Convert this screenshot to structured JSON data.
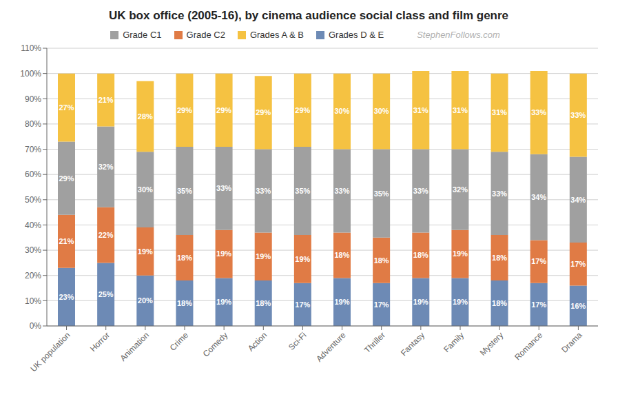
{
  "chart_data": {
    "type": "bar",
    "title": "UK box office (2005-16), by cinema audience social class and film genre",
    "annotations": [
      "StephenFollows.com"
    ],
    "categories": [
      "UK population",
      "Horror",
      "Animation",
      "Crime",
      "Comedy",
      "Action",
      "Sci-Fi",
      "Adventure",
      "Thriller",
      "Fantasy",
      "Family",
      "Mystery",
      "Romance",
      "Drama"
    ],
    "series": [
      {
        "name": "Grades D & E",
        "color": "#6d8ab5",
        "values": [
          23,
          25,
          20,
          18,
          19,
          18,
          17,
          19,
          17,
          19,
          19,
          18,
          17,
          16
        ],
        "value_labels": [
          "23%",
          "25%",
          "20%",
          "18%",
          "19%",
          "18%",
          "17%",
          "19%",
          "17%",
          "19%",
          "19%",
          "18%",
          "17%",
          "16%"
        ]
      },
      {
        "name": "Grade C2",
        "color": "#e07b45",
        "values": [
          21,
          22,
          19,
          18,
          19,
          19,
          19,
          18,
          18,
          18,
          19,
          18,
          17,
          17
        ],
        "value_labels": [
          "21%",
          "22%",
          "19%",
          "18%",
          "19%",
          "19%",
          "19%",
          "18%",
          "18%",
          "18%",
          "19%",
          "18%",
          "17%",
          "17%"
        ]
      },
      {
        "name": "Grade C1",
        "color": "#a0a0a0",
        "values": [
          29,
          32,
          30,
          35,
          33,
          33,
          35,
          33,
          35,
          33,
          32,
          33,
          34,
          34
        ],
        "value_labels": [
          "29%",
          "32%",
          "30%",
          "35%",
          "33%",
          "33%",
          "35%",
          "33%",
          "35%",
          "33%",
          "32%",
          "33%",
          "34%",
          "34%"
        ]
      },
      {
        "name": "Grades A & B",
        "color": "#f5c242",
        "values": [
          27,
          21,
          28,
          29,
          29,
          29,
          29,
          30,
          30,
          31,
          31,
          31,
          33,
          33
        ],
        "value_labels": [
          "27%",
          "21%",
          "28%",
          "29%",
          "29%",
          "29%",
          "29%",
          "30%",
          "30%",
          "31%",
          "31%",
          "31%",
          "33%",
          "33%"
        ]
      }
    ],
    "ylim": [
      0,
      110
    ],
    "yticks": [
      {
        "value": 0,
        "label": "0%"
      },
      {
        "value": 10,
        "label": "10%"
      },
      {
        "value": 20,
        "label": "20%"
      },
      {
        "value": 30,
        "label": "30%"
      },
      {
        "value": 40,
        "label": "40%"
      },
      {
        "value": 50,
        "label": "50%"
      },
      {
        "value": 60,
        "label": "60%"
      },
      {
        "value": 70,
        "label": "70%"
      },
      {
        "value": 80,
        "label": "80%"
      },
      {
        "value": 90,
        "label": "90%"
      },
      {
        "value": 100,
        "label": "100%"
      },
      {
        "value": 110,
        "label": "110%"
      }
    ],
    "grid": true,
    "legend": "top",
    "stacked": true,
    "data_labels": true
  }
}
